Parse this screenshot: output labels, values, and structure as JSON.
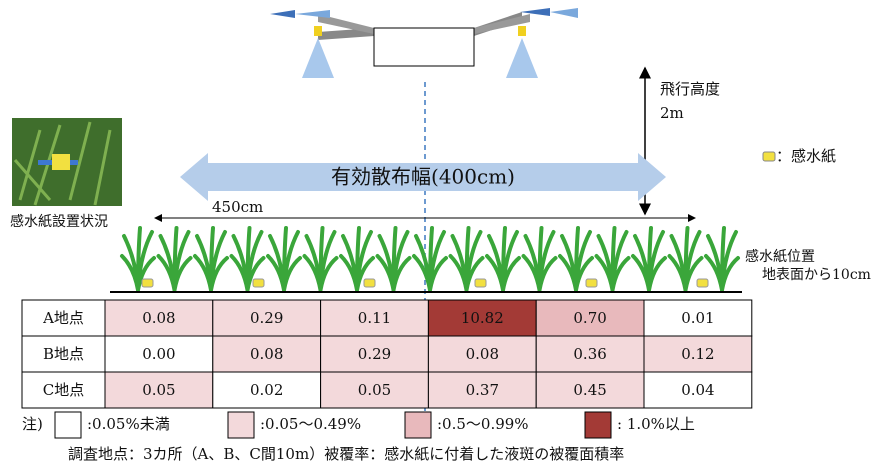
{
  "drone": {
    "height_label": "飛行高度",
    "height_value": "2m"
  },
  "spray_width": "有効散布幅(400cm)",
  "span_width": "450cm",
  "photo_caption": "感水紙設置状況",
  "paper_legend": "：感水紙",
  "paper_position": {
    "title": "感水紙位置",
    "detail": "地表面から10cm"
  },
  "table": {
    "rows": [
      {
        "label": "A地点",
        "cells": [
          {
            "text": "0.08",
            "color": "#f3d9db"
          },
          {
            "text": "0.29",
            "color": "#f3d9db"
          },
          {
            "text": "0.11",
            "color": "#f3d9db"
          },
          {
            "text": "10.82",
            "color": "#a33a36"
          },
          {
            "text": "0.70",
            "color": "#e8b9bc"
          },
          {
            "text": "0.01",
            "color": "#ffffff"
          }
        ]
      },
      {
        "label": "B地点",
        "cells": [
          {
            "text": "0.00",
            "color": "#ffffff"
          },
          {
            "text": "0.08",
            "color": "#f3d9db"
          },
          {
            "text": "0.29",
            "color": "#f3d9db"
          },
          {
            "text": "0.08",
            "color": "#f3d9db"
          },
          {
            "text": "0.36",
            "color": "#f3d9db"
          },
          {
            "text": "0.12",
            "color": "#f3d9db"
          }
        ]
      },
      {
        "label": "C地点",
        "cells": [
          {
            "text": "0.05",
            "color": "#f3d9db"
          },
          {
            "text": "0.02",
            "color": "#ffffff"
          },
          {
            "text": "0.05",
            "color": "#f3d9db"
          },
          {
            "text": "0.37",
            "color": "#f3d9db"
          },
          {
            "text": "0.45",
            "color": "#f3d9db"
          },
          {
            "text": "0.04",
            "color": "#ffffff"
          }
        ]
      }
    ]
  },
  "legend": {
    "prefix": "注)",
    "items": [
      {
        "label": ":0.05%未満",
        "color": "#ffffff"
      },
      {
        "label": ":0.05～0.49%",
        "color": "#f3d9db"
      },
      {
        "label": ":0.5～0.99%",
        "color": "#e8b9bc"
      },
      {
        "label": ": 1.0%以上",
        "color": "#a33a36"
      }
    ]
  },
  "footnote": "調査地点：3カ所（A、B、C間10m）被覆率：感水紙に付着した液斑の被覆面積率"
}
